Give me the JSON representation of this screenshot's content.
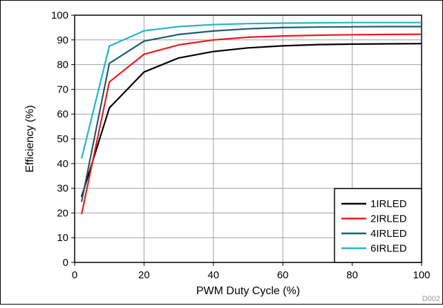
{
  "figure_id": "D002",
  "chart_data": {
    "type": "line",
    "title": "",
    "xlabel": "PWM Duty Cycle (%)",
    "ylabel": "Efficiency (%)",
    "xlim": [
      0,
      100
    ],
    "ylim": [
      0,
      100
    ],
    "xticks": [
      0,
      20,
      40,
      60,
      80,
      100
    ],
    "yticks": [
      0,
      10,
      20,
      30,
      40,
      50,
      60,
      70,
      80,
      90,
      100
    ],
    "grid": true,
    "legend_position": "bottom-right",
    "series": [
      {
        "name": "1IRLED",
        "color": "#000000",
        "x": [
          2,
          10,
          20,
          30,
          40,
          50,
          60,
          70,
          80,
          90,
          100
        ],
        "y": [
          26.5,
          62.5,
          77,
          82.7,
          85.3,
          86.8,
          87.6,
          88.1,
          88.3,
          88.4,
          88.5
        ]
      },
      {
        "name": "2IRLED",
        "color": "#e8191b",
        "x": [
          2,
          10,
          20,
          30,
          40,
          50,
          60,
          70,
          80,
          90,
          100
        ],
        "y": [
          19.5,
          73,
          84.2,
          88,
          90,
          91.1,
          91.6,
          91.9,
          92.1,
          92.2,
          92.3
        ]
      },
      {
        "name": "4IRLED",
        "color": "#1a5c70",
        "x": [
          2,
          10,
          20,
          30,
          40,
          50,
          60,
          70,
          80,
          90,
          100
        ],
        "y": [
          24.5,
          80.5,
          89.5,
          92.2,
          93.6,
          94.5,
          95,
          95.2,
          95.3,
          95.4,
          95.4
        ]
      },
      {
        "name": "6IRLED",
        "color": "#22b5c9",
        "x": [
          2,
          10,
          20,
          30,
          40,
          50,
          60,
          70,
          80,
          90,
          100
        ],
        "y": [
          42,
          87.5,
          93.7,
          95.4,
          96.2,
          96.6,
          96.8,
          96.9,
          97,
          97,
          97
        ]
      }
    ]
  }
}
